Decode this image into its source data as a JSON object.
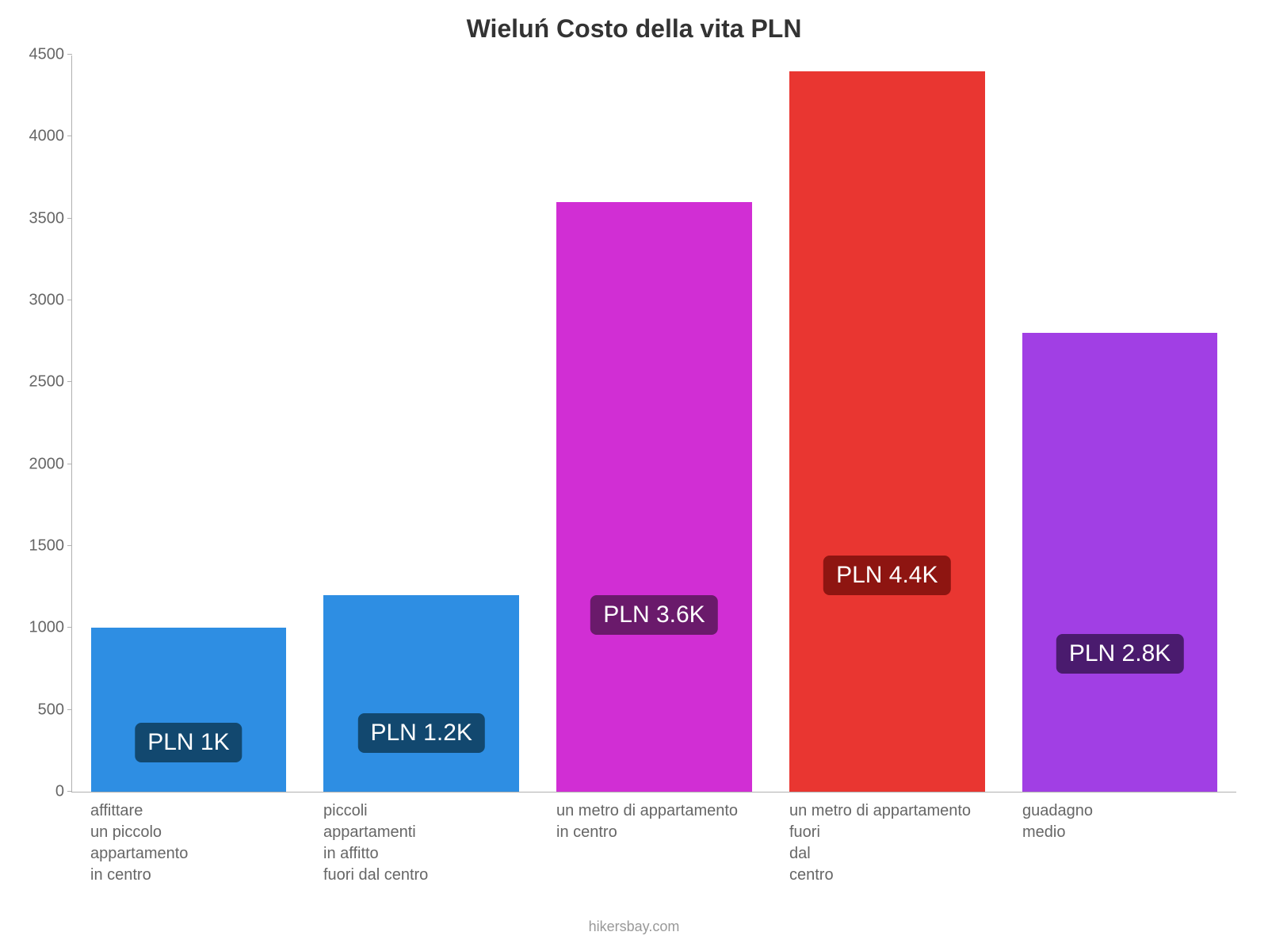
{
  "chart": {
    "type": "bar",
    "title": "Wieluń Costo della vita PLN",
    "title_fontsize": 32,
    "title_color": "#333333",
    "background_color": "#ffffff",
    "axis_color": "#b0b0b0",
    "tick_label_color": "#666666",
    "tick_label_fontsize": 20,
    "ylim": [
      0,
      4500
    ],
    "ytick_step": 500,
    "yticks": [
      0,
      500,
      1000,
      1500,
      2000,
      2500,
      3000,
      3500,
      4000,
      4500
    ],
    "bar_width_pct": 84,
    "bars": [
      {
        "category": "affittare\nun piccolo\nappartamento\nin centro",
        "value": 1000,
        "bar_color": "#2e8ee3",
        "value_label": "PLN 1K",
        "label_bg": "#12486f",
        "label_text_color": "#ffffff"
      },
      {
        "category": "piccoli\nappartamenti\nin affitto\nfuori dal centro",
        "value": 1200,
        "bar_color": "#2e8ee3",
        "value_label": "PLN 1.2K",
        "label_bg": "#12486f",
        "label_text_color": "#ffffff"
      },
      {
        "category": "un metro di appartamento\nin centro",
        "value": 3600,
        "bar_color": "#d12ed4",
        "value_label": "PLN 3.6K",
        "label_bg": "#6a1a6b",
        "label_text_color": "#ffffff"
      },
      {
        "category": "un metro di appartamento\nfuori\ndal\ncentro",
        "value": 4400,
        "bar_color": "#e93631",
        "value_label": "PLN 4.4K",
        "label_bg": "#8e1511",
        "label_text_color": "#ffffff"
      },
      {
        "category": "guadagno\nmedio",
        "value": 2800,
        "bar_color": "#a13fe4",
        "value_label": "PLN 2.8K",
        "label_bg": "#4a1b6e",
        "label_text_color": "#ffffff"
      }
    ],
    "value_label_fontsize": 30,
    "value_label_radius": 8,
    "credit": "hikersbay.com",
    "credit_color": "#999999",
    "credit_fontsize": 18
  }
}
